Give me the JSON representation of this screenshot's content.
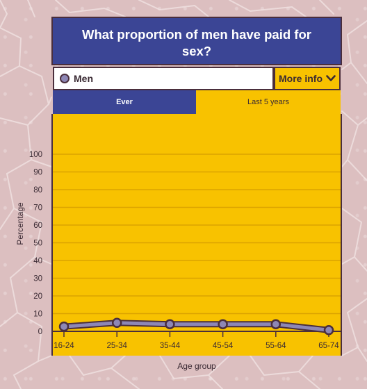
{
  "title": "What proportion of men have paid for sex?",
  "selector": {
    "label": "Men",
    "series_color": "#8e87b5"
  },
  "more_info": {
    "label": "More info"
  },
  "tabs": [
    {
      "label": "Ever",
      "active": false
    },
    {
      "label": "Last 5 years",
      "active": true
    }
  ],
  "colors": {
    "navy": "#3b4595",
    "yellow": "#f8c200",
    "border": "#4a2e3c",
    "line": "#8e87b5",
    "gridline": "#dba300"
  },
  "chart_data": {
    "type": "line",
    "xlabel": "Age group",
    "ylabel": "Percentage",
    "ylim": [
      0,
      100
    ],
    "yticks": [
      0,
      10,
      20,
      30,
      40,
      50,
      60,
      70,
      80,
      90,
      100
    ],
    "grid": true,
    "categories": [
      "16-24",
      "25-34",
      "35-44",
      "45-54",
      "55-64",
      "65-74"
    ],
    "series": [
      {
        "name": "Men",
        "values": [
          2.7,
          4.8,
          4.0,
          4.0,
          4.0,
          0.7
        ]
      }
    ]
  }
}
